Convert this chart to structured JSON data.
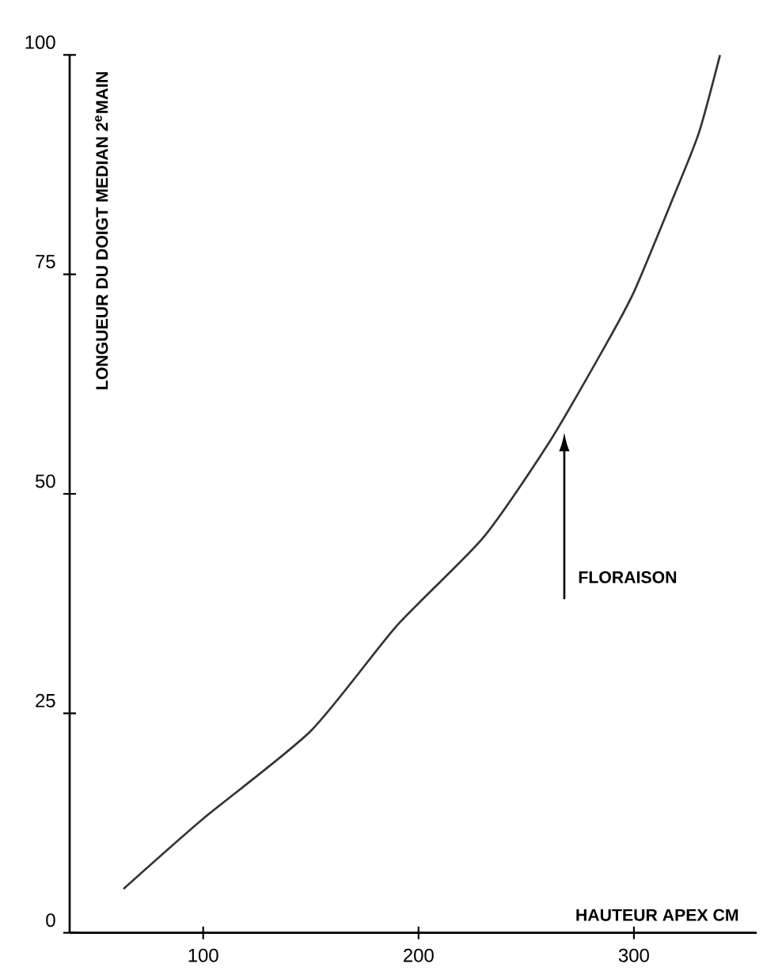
{
  "chart_data": {
    "type": "line",
    "xlabel": "HAUTEUR APEX CM",
    "ylabel": "LONGUEUR DU DOIGT MEDIAN 2$^{e}$MAIN",
    "x": [
      63,
      100,
      150,
      190,
      230,
      261,
      287,
      300,
      317,
      330,
      340
    ],
    "series": [
      {
        "color": "#333333",
        "values": [
          5,
          13,
          23,
          35,
          45,
          56,
          67,
          73,
          83,
          91,
          100
        ]
      }
    ],
    "xlim": [
      38,
      357
    ],
    "ylim": [
      0,
      100
    ],
    "xticks": [
      100,
      200,
      300
    ],
    "yticks": [
      0,
      25,
      50,
      75,
      100
    ],
    "grid": false,
    "marker": "none",
    "line_style": "solid",
    "annotations": [
      "FLORAISON"
    ]
  }
}
